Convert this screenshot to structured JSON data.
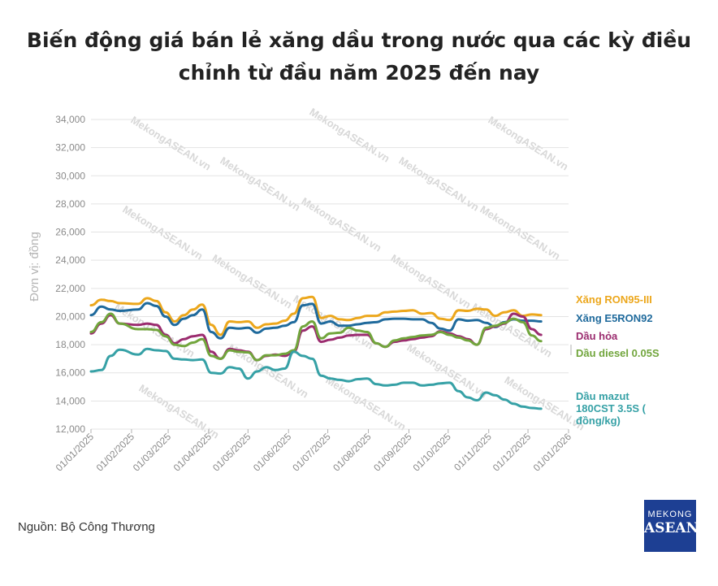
{
  "chart_data": {
    "type": "line",
    "title_line1": "Biến động giá bán lẻ xăng dầu trong nước qua các kỳ điều",
    "title_line2": "chỉnh từ đầu năm 2025 đến nay",
    "xlabel": "",
    "ylabel": "Đơn vị: đồng",
    "ylim": [
      12000,
      34000
    ],
    "yticks": [
      12000,
      14000,
      16000,
      18000,
      20000,
      22000,
      24000,
      26000,
      28000,
      30000,
      32000,
      34000
    ],
    "ytick_labels": [
      "12,000",
      "14,000",
      "16,000",
      "18,000",
      "20,000",
      "22,000",
      "24,000",
      "26,000",
      "28,000",
      "30,000",
      "32,000",
      "34,000"
    ],
    "xlim": [
      "2025-01-01",
      "2026-01-01"
    ],
    "xticks": [
      "2025-01-01",
      "2025-02-01",
      "2025-03-01",
      "2025-04-01",
      "2025-05-01",
      "2025-06-01",
      "2025-07-01",
      "2025-08-01",
      "2025-09-01",
      "2025-10-01",
      "2025-11-01",
      "2025-12-01",
      "2026-01-01"
    ],
    "xtick_labels": [
      "01/01/2025",
      "01/02/2025",
      "01/03/2025",
      "01/04/2025",
      "01/05/2025",
      "01/06/2025",
      "01/07/2025",
      "01/08/2025",
      "01/09/2025",
      "01/10/2025",
      "01/11/2025",
      "01/12/2025",
      "01/01/2026"
    ],
    "grid": true,
    "legend": "right-end labels",
    "dates": [
      "2025-01-01",
      "2025-01-09",
      "2025-01-16",
      "2025-01-23",
      "2025-02-06",
      "2025-02-13",
      "2025-02-20",
      "2025-02-27",
      "2025-03-06",
      "2025-03-13",
      "2025-03-20",
      "2025-03-27",
      "2025-04-03",
      "2025-04-10",
      "2025-04-17",
      "2025-04-24",
      "2025-05-01",
      "2025-05-08",
      "2025-05-15",
      "2025-05-22",
      "2025-05-29",
      "2025-06-05",
      "2025-06-12",
      "2025-06-19",
      "2025-06-26",
      "2025-07-03",
      "2025-07-10",
      "2025-07-17",
      "2025-07-24",
      "2025-07-31",
      "2025-08-07",
      "2025-08-14",
      "2025-08-21",
      "2025-08-28",
      "2025-09-04",
      "2025-09-11",
      "2025-09-18",
      "2025-09-25",
      "2025-10-02",
      "2025-10-09",
      "2025-10-16",
      "2025-10-23",
      "2025-10-30",
      "2025-11-06",
      "2025-11-13",
      "2025-11-20",
      "2025-11-27",
      "2025-12-04",
      "2025-12-11"
    ],
    "series": [
      {
        "name": "Xăng RON95-III",
        "color": "#eca71c",
        "values": [
          20800,
          21200,
          21100,
          20950,
          20900,
          21300,
          21100,
          20300,
          19650,
          20100,
          20500,
          20850,
          19400,
          18700,
          19650,
          19600,
          19650,
          19200,
          19450,
          19500,
          19700,
          20200,
          21300,
          21400,
          19900,
          20050,
          19800,
          19750,
          19900,
          20050,
          20050,
          20300,
          20350,
          20400,
          20450,
          20200,
          20250,
          19850,
          19750,
          20450,
          20400,
          20550,
          20500,
          20050,
          20300,
          20450,
          20050,
          20150,
          20100
        ]
      },
      {
        "name": "Xăng E5RON92",
        "color": "#1f6a9c",
        "values": [
          20100,
          20700,
          20500,
          20400,
          20500,
          20950,
          20750,
          20000,
          19400,
          19850,
          20100,
          20500,
          18900,
          18450,
          19200,
          19150,
          19200,
          18850,
          19150,
          19200,
          19350,
          19600,
          20800,
          20900,
          19500,
          19650,
          19350,
          19350,
          19450,
          19550,
          19600,
          19800,
          19850,
          19850,
          19800,
          19800,
          19550,
          19150,
          19000,
          19800,
          19700,
          19750,
          19550,
          19250,
          19600,
          19800,
          19700,
          19700,
          19650
        ]
      },
      {
        "name": "Dầu hỏa",
        "color": "#9b2c6f",
        "values": [
          18800,
          19500,
          20100,
          19500,
          19400,
          19500,
          19400,
          18700,
          18100,
          18400,
          18600,
          18700,
          17500,
          17000,
          17700,
          17600,
          17500,
          16900,
          17200,
          17300,
          17200,
          17500,
          19000,
          19300,
          18200,
          18350,
          18500,
          18650,
          18700,
          18700,
          18100,
          17850,
          18200,
          18300,
          18400,
          18500,
          18600,
          18950,
          18800,
          18600,
          18400,
          18000,
          19100,
          19300,
          19500,
          20200,
          20000,
          19100,
          18700
        ]
      },
      {
        "name": "Dầu diesel 0.05S",
        "color": "#71a53c",
        "values": [
          18900,
          19600,
          20200,
          19500,
          19100,
          19100,
          19050,
          18600,
          18000,
          17900,
          18150,
          18400,
          17200,
          17000,
          17600,
          17500,
          17450,
          16900,
          17250,
          17250,
          17350,
          17600,
          19300,
          19650,
          18450,
          18800,
          18850,
          19200,
          19000,
          18900,
          18100,
          17850,
          18300,
          18450,
          18550,
          18650,
          18700,
          18900,
          18700,
          18500,
          18300,
          18000,
          19200,
          19350,
          19550,
          19850,
          19600,
          18650,
          18250
        ]
      },
      {
        "name": "Dầu mazut 180CST 3.5S ( đồng/kg)",
        "color": "#36a1a6",
        "values": [
          16100,
          16200,
          17200,
          17650,
          17300,
          17700,
          17600,
          17550,
          17000,
          16950,
          16900,
          16950,
          16000,
          15950,
          16400,
          16300,
          15600,
          16100,
          16400,
          16200,
          16300,
          17500,
          17200,
          17000,
          15800,
          15600,
          15500,
          15400,
          15550,
          15600,
          15200,
          15100,
          15150,
          15300,
          15300,
          15100,
          15150,
          15250,
          15300,
          14700,
          14250,
          14050,
          14600,
          14400,
          14100,
          13800,
          13600,
          13500,
          13450
        ]
      }
    ],
    "end_labels": [
      {
        "lines": [
          "Xăng RON95-III"
        ],
        "color": "#eca71c"
      },
      {
        "lines": [
          "Xăng E5RON92"
        ],
        "color": "#1f6a9c"
      },
      {
        "lines": [
          "Dầu hỏa"
        ],
        "color": "#9b2c6f"
      },
      {
        "lines": [
          "Dầu diesel 0.05S"
        ],
        "color": "#71a53c"
      },
      {
        "lines": [
          "Dầu mazut",
          "180CST 3.5S (",
          "đồng/kg)"
        ],
        "color": "#36a1a6"
      }
    ],
    "watermark": "MekongASEAN.vn"
  },
  "footer": {
    "source": "Nguồn: Bộ Công Thương",
    "logo_line1": "MEKONG",
    "logo_line2": "ASEAN"
  }
}
